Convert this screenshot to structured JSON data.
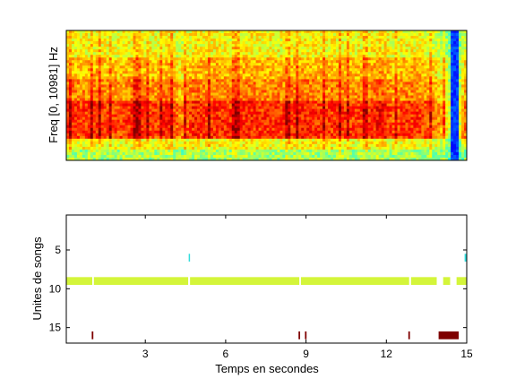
{
  "chart_data": [
    {
      "type": "heatmap",
      "title": "",
      "xlabel": "",
      "ylabel": "Freq [0, 10981] Hz",
      "xlim": [
        0.05,
        15.0
      ],
      "ylim": [
        0,
        10981
      ],
      "colormap": "jet",
      "description_dense_bands": "energy concentrated in lower-middle frequency rows, broadband burst near t=14.5 s",
      "intensity_profile": {
        "t": [
          0.2,
          0.5,
          1.0,
          1.5,
          2.0,
          2.5,
          3.0,
          3.5,
          3.9,
          4.3,
          4.8,
          5.3,
          5.8,
          6.3,
          6.8,
          7.3,
          7.8,
          8.3,
          8.8,
          9.3,
          9.8,
          10.3,
          10.8,
          11.3,
          11.8,
          12.3,
          12.8,
          13.3,
          13.8,
          14.2,
          14.6,
          14.9
        ],
        "level": [
          0.85,
          0.78,
          0.82,
          0.8,
          0.76,
          0.83,
          0.8,
          0.77,
          0.88,
          0.66,
          0.84,
          0.8,
          0.83,
          0.79,
          0.85,
          0.8,
          0.82,
          0.78,
          0.86,
          0.82,
          0.8,
          0.83,
          0.78,
          0.8,
          0.9,
          0.74,
          0.82,
          0.8,
          0.7,
          0.55,
          0.12,
          0.7
        ]
      },
      "grid": false
    },
    {
      "type": "scatter",
      "title": "",
      "xlabel": "Temps en secondes",
      "ylabel": "Unites de songs",
      "xlim": [
        0.05,
        15.0
      ],
      "ylim": [
        17,
        0.5
      ],
      "y_reversed": true,
      "xticks": [
        3,
        6,
        9,
        12,
        15
      ],
      "yticks": [
        5,
        10,
        15
      ],
      "segments": [
        {
          "unit": 6,
          "start": 4.62,
          "end": 4.66,
          "color": "#33dddd"
        },
        {
          "unit": 6,
          "start": 14.92,
          "end": 15.0,
          "color": "#33dddd"
        },
        {
          "unit": 9,
          "start": 0.05,
          "end": 1.02,
          "color": "#d4f53a"
        },
        {
          "unit": 9,
          "start": 1.08,
          "end": 4.6,
          "color": "#d4f53a"
        },
        {
          "unit": 9,
          "start": 4.67,
          "end": 8.75,
          "color": "#d4f53a"
        },
        {
          "unit": 9,
          "start": 8.81,
          "end": 12.85,
          "color": "#d4f53a"
        },
        {
          "unit": 9,
          "start": 12.92,
          "end": 13.88,
          "color": "#d4f53a"
        },
        {
          "unit": 9,
          "start": 14.12,
          "end": 14.38,
          "color": "#d4f53a"
        },
        {
          "unit": 9,
          "start": 14.62,
          "end": 15.0,
          "color": "#d4f53a"
        },
        {
          "unit": 16,
          "start": 1.0,
          "end": 1.06,
          "color": "#7f0000"
        },
        {
          "unit": 16,
          "start": 8.72,
          "end": 8.78,
          "color": "#7f0000"
        },
        {
          "unit": 16,
          "start": 8.96,
          "end": 9.02,
          "color": "#7f0000"
        },
        {
          "unit": 16,
          "start": 12.82,
          "end": 12.88,
          "color": "#7f0000"
        },
        {
          "unit": 16,
          "start": 13.95,
          "end": 14.7,
          "color": "#7f0000"
        }
      ],
      "grid": false
    }
  ]
}
